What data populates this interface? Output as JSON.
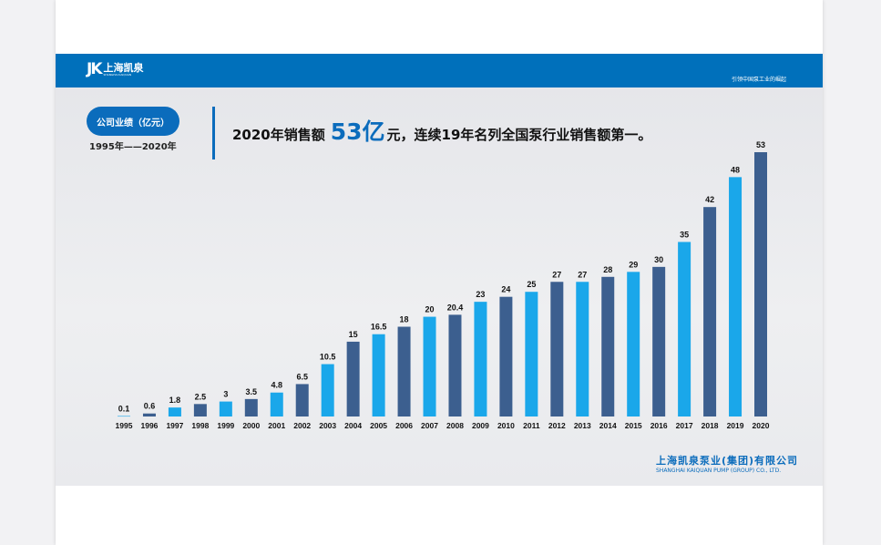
{
  "header": {
    "logo_mark": "JK",
    "logo_cn": "上海凯泉",
    "logo_en": "SHANGHAI KAIQUAN",
    "slogan": "引领中国泵工业的崛起"
  },
  "badge": "公司业绩（亿元）",
  "range": "1995年——2020年",
  "headline": {
    "pre": "2020年销售额",
    "value": "53亿",
    "post": "元，连续19年名列全国泵行业销售额第一。"
  },
  "footer": {
    "company_cn": "上海凯泉泵业(集团)有限公司",
    "company_en": "SHANGHAI KAIQUAN PUMP (GROUP) CO., LTD."
  },
  "colors": {
    "brand": "#0070bb",
    "odd_bar": "#1aa7ea",
    "even_bar": "#3c5f8f"
  },
  "chart_data": {
    "type": "bar",
    "categories": [
      "1995",
      "1996",
      "1997",
      "1998",
      "1999",
      "2000",
      "2001",
      "2002",
      "2003",
      "2004",
      "2005",
      "2006",
      "2007",
      "2008",
      "2009",
      "2010",
      "2011",
      "2012",
      "2013",
      "2014",
      "2015",
      "2016",
      "2017",
      "2018",
      "2019",
      "2020"
    ],
    "values": [
      0.1,
      0.6,
      1.8,
      2.5,
      3,
      3.5,
      4.8,
      6.5,
      10.5,
      15,
      16.5,
      18,
      20,
      20.4,
      23,
      24,
      25,
      27,
      27,
      28,
      29,
      30,
      35,
      42,
      48,
      53
    ],
    "labels": [
      "0.1",
      "0.6",
      "1.8",
      "2.5",
      "3",
      "3.5",
      "4.8",
      "6.5",
      "10.5",
      "15",
      "16.5",
      "18",
      "20",
      "20.4",
      "23",
      "24",
      "25",
      "27",
      "27",
      "28",
      "29",
      "30",
      "35",
      "42",
      "48",
      "53"
    ],
    "ylim": [
      0,
      53
    ],
    "grid": false,
    "legend": "none",
    "xlabel": "",
    "ylabel": ""
  }
}
